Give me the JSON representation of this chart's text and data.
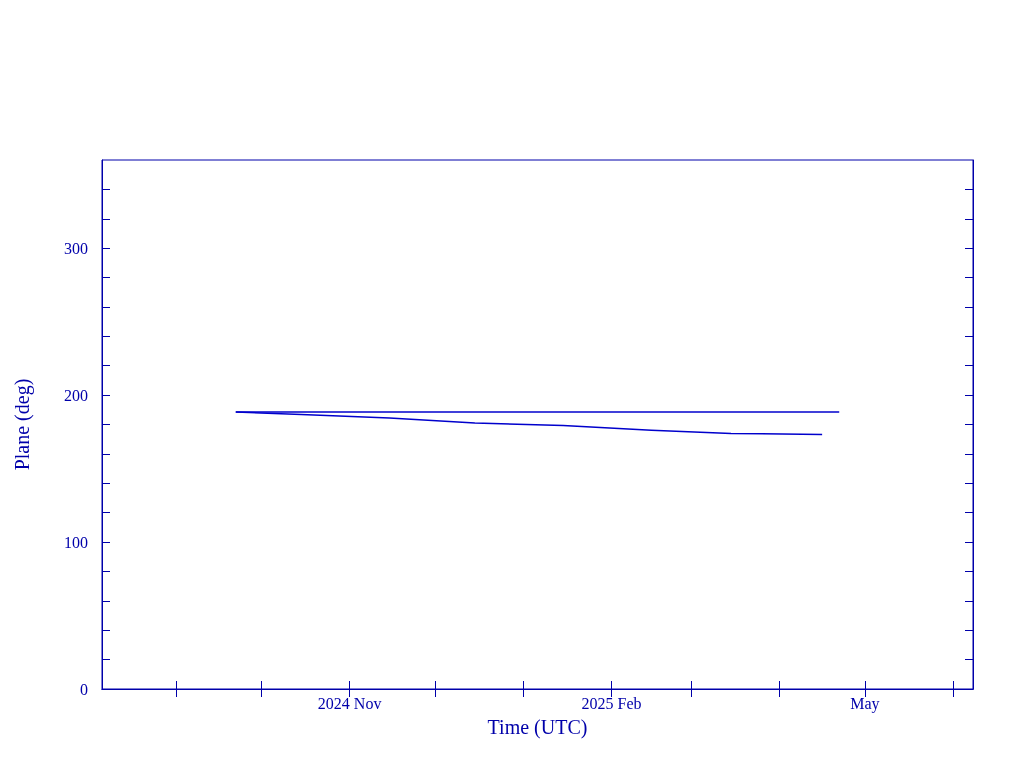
{
  "chart_data": {
    "type": "line",
    "xlabel": "Time (UTC)",
    "ylabel": "Plane (deg)",
    "xlim": [
      "2024-08-06",
      "2025-06-08"
    ],
    "xticks": [
      {
        "value": "2024-09-01",
        "label": null
      },
      {
        "value": "2024-10-01",
        "label": null
      },
      {
        "value": "2024-11-01",
        "label": "2024 Nov"
      },
      {
        "value": "2024-12-01",
        "label": null
      },
      {
        "value": "2025-01-01",
        "label": null
      },
      {
        "value": "2025-02-01",
        "label": "2025 Feb"
      },
      {
        "value": "2025-03-01",
        "label": null
      },
      {
        "value": "2025-04-01",
        "label": null
      },
      {
        "value": "2025-05-01",
        "label": "May"
      },
      {
        "value": "2025-06-01",
        "label": null
      }
    ],
    "ylim": [
      0,
      360
    ],
    "yticks": [
      0,
      {
        "value": 20,
        "label": null
      },
      {
        "value": 40,
        "label": null
      },
      {
        "value": 60,
        "label": null
      },
      {
        "value": 80,
        "label": null
      },
      100,
      {
        "value": 120,
        "label": null
      },
      {
        "value": 140,
        "label": null
      },
      {
        "value": 160,
        "label": null
      },
      {
        "value": 180,
        "label": null
      },
      200,
      {
        "value": 220,
        "label": null
      },
      {
        "value": 240,
        "label": null
      },
      {
        "value": 260,
        "label": null
      },
      {
        "value": 280,
        "label": null
      },
      300,
      {
        "value": 320,
        "label": null
      },
      {
        "value": 340,
        "label": null
      }
    ],
    "series": [
      {
        "color": "#0000cc",
        "x": [
          "2024-09-22",
          "2025-02-12",
          "2025-04-22"
        ],
        "values": [
          188.5,
          188.5,
          188.5
        ]
      },
      {
        "color": "#0000cc",
        "x": [
          "2024-09-22",
          "2024-10-15",
          "2024-11-15",
          "2024-12-15",
          "2025-01-15",
          "2025-02-15",
          "2025-03-15",
          "2025-04-16"
        ],
        "values": [
          188.5,
          186.8,
          184.5,
          181.1,
          179.3,
          176.1,
          173.9,
          173.2
        ]
      }
    ],
    "grid": false,
    "marker": "none",
    "line_style": "solid"
  }
}
